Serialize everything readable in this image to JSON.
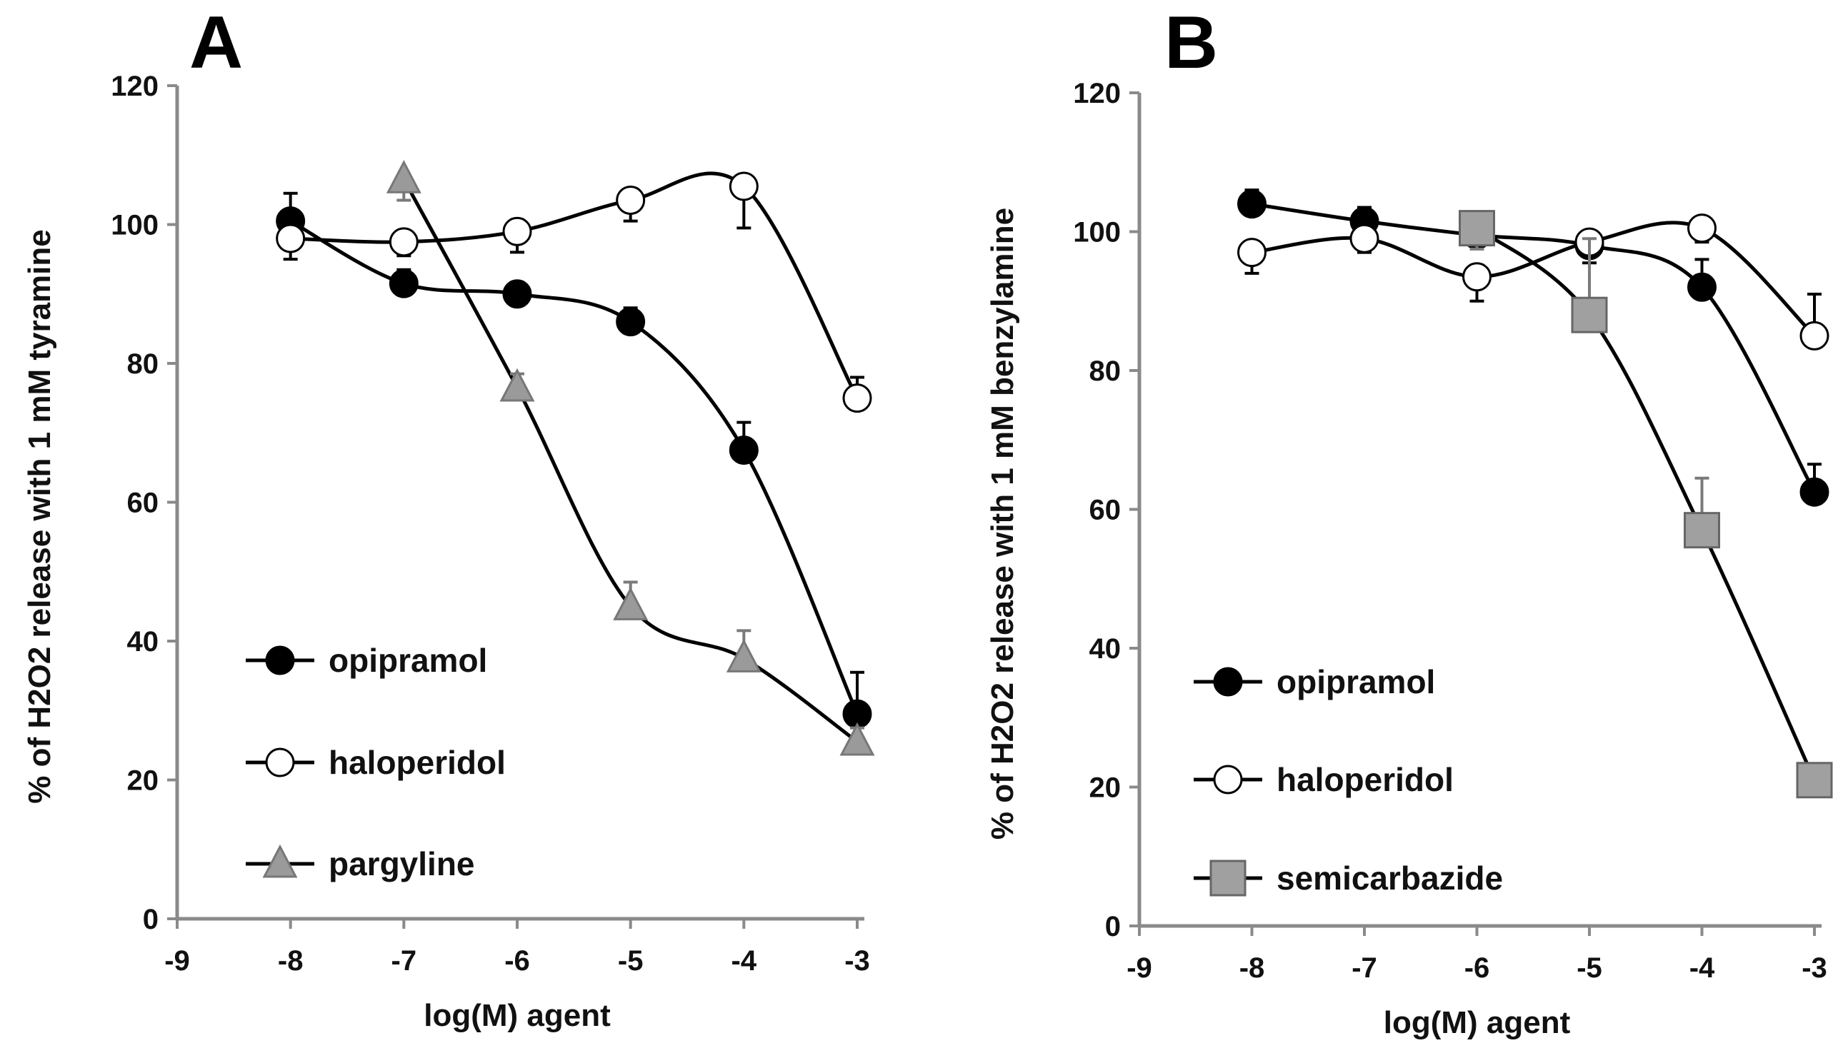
{
  "chart_data": [
    {
      "panel": "A",
      "type": "line",
      "xlabel": "log(M) agent",
      "ylabel": "%  of  H2O2 release with 1 mM tyramine",
      "xlim": [
        -9,
        -3
      ],
      "ylim": [
        0,
        120
      ],
      "xticks": [
        "-9",
        "-8",
        "-7",
        "-6",
        "-5",
        "-4",
        "-3"
      ],
      "yticks": [
        "0",
        "20",
        "40",
        "60",
        "80",
        "100",
        "120"
      ],
      "legend_position": "bottom-left",
      "series": [
        {
          "name": "opipramol",
          "marker": "circle",
          "color": "#000000",
          "line": "#000000",
          "x": [
            -8,
            -7,
            -6,
            -5,
            -4,
            -3
          ],
          "y": [
            100.5,
            91.5,
            90,
            86,
            67.5,
            29.5
          ],
          "err": [
            4,
            2,
            1.5,
            2,
            4,
            6
          ]
        },
        {
          "name": "haloperidol",
          "marker": "circle",
          "color": "#ffffff",
          "line": "#000000",
          "x": [
            -8,
            -7,
            -6,
            -5,
            -4,
            -3
          ],
          "y": [
            98,
            97.5,
            99,
            103.5,
            105.5,
            75
          ],
          "err": [
            3,
            2,
            3,
            3,
            6,
            3
          ]
        },
        {
          "name": "pargyline",
          "marker": "triangle",
          "color": "#9a9a9a",
          "line": "#000000",
          "x": [
            -7,
            -6,
            -5,
            -4,
            -3
          ],
          "y": [
            106.5,
            76.5,
            45,
            37.5,
            25.5
          ],
          "err": [
            3,
            2,
            3.5,
            4,
            2
          ]
        }
      ]
    },
    {
      "panel": "B",
      "type": "line",
      "xlabel": "log(M) agent",
      "ylabel": "%  of H2O2 release with 1 mM benzylamine",
      "xlim": [
        -9,
        -3
      ],
      "ylim": [
        0,
        120
      ],
      "xticks": [
        "-9",
        "-8",
        "-7",
        "-6",
        "-5",
        "-4",
        "-3"
      ],
      "yticks": [
        "0",
        "20",
        "40",
        "60",
        "80",
        "100",
        "120"
      ],
      "legend_position": "bottom-left",
      "series": [
        {
          "name": "opipramol",
          "marker": "circle",
          "color": "#000000",
          "line": "#000000",
          "x": [
            -8,
            -7,
            -6,
            -5,
            -4,
            -3
          ],
          "y": [
            104,
            101.5,
            99.5,
            98,
            92,
            62.5
          ],
          "err": [
            2,
            2,
            2,
            2,
            4,
            4
          ]
        },
        {
          "name": "haloperidol",
          "marker": "circle",
          "color": "#ffffff",
          "line": "#000000",
          "x": [
            -8,
            -7,
            -6,
            -5,
            -4,
            -3
          ],
          "y": [
            97,
            99,
            93.5,
            98.5,
            100.5,
            85
          ],
          "err": [
            3,
            2,
            3.5,
            3,
            2,
            6
          ]
        },
        {
          "name": "semicarbazide",
          "marker": "square",
          "color": "#a0a0a0",
          "line": "#000000",
          "x": [
            -6,
            -5,
            -4,
            -3
          ],
          "y": [
            100.5,
            88,
            57,
            21
          ],
          "err": [
            3,
            11,
            7.5,
            2
          ]
        }
      ]
    }
  ]
}
